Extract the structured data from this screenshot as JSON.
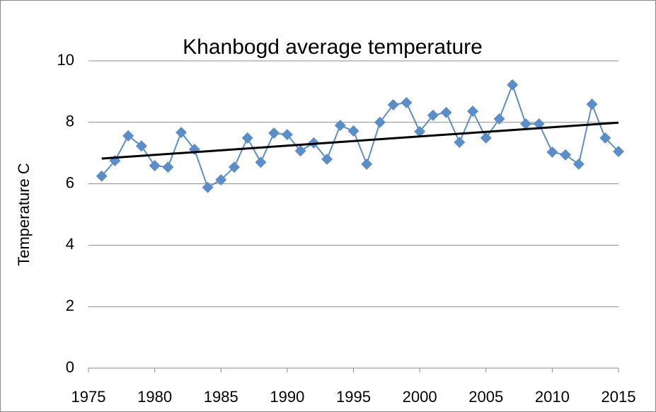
{
  "chart_data": {
    "type": "line",
    "title": "Khanbogd average temperature",
    "y_label": "Temperature C",
    "x": [
      1976,
      1977,
      1978,
      1979,
      1980,
      1981,
      1982,
      1983,
      1984,
      1985,
      1986,
      1987,
      1988,
      1989,
      1990,
      1991,
      1992,
      1993,
      1994,
      1995,
      1996,
      1997,
      1998,
      1999,
      2000,
      2001,
      2002,
      2003,
      2004,
      2005,
      2006,
      2007,
      2008,
      2009,
      2010,
      2011,
      2012,
      2013,
      2014,
      2015
    ],
    "series": [
      {
        "color": "#5b8ec8",
        "values": [
          6.25,
          6.75,
          7.56,
          7.23,
          6.59,
          6.54,
          7.67,
          7.12,
          5.88,
          6.13,
          6.54,
          7.49,
          6.7,
          7.65,
          7.6,
          7.07,
          7.33,
          6.8,
          7.9,
          7.72,
          6.64,
          8.0,
          8.57,
          8.64,
          7.7,
          8.23,
          8.32,
          7.35,
          8.36,
          7.49,
          8.11,
          9.22,
          7.95,
          7.95,
          7.03,
          6.94,
          6.64,
          8.59,
          7.49,
          7.05
        ]
      }
    ],
    "trendline": {
      "color": "#000000",
      "x": [
        1976,
        2015
      ],
      "values": [
        6.82,
        7.99
      ]
    },
    "xlim": [
      1975,
      2015
    ],
    "xticks": [
      1975,
      1980,
      1985,
      1990,
      1995,
      2000,
      2005,
      2010,
      2015
    ],
    "ylim": [
      0,
      10
    ],
    "yticks": [
      0,
      2,
      4,
      6,
      8,
      10
    ],
    "grid": true
  }
}
